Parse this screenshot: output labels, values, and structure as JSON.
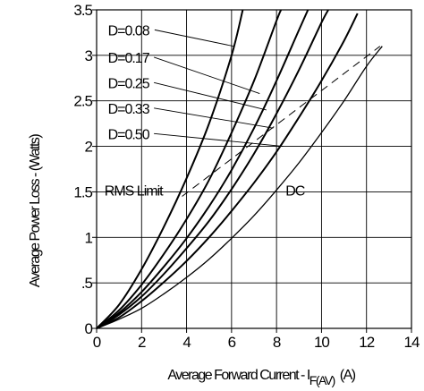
{
  "chart_data": {
    "type": "line",
    "xlabel": "Average Forward Current - I",
    "xlabel_sub": "F(AV)",
    "xlabel_unit": "(A)",
    "ylabel": "Average Power Loss - (Watts)",
    "xlim": [
      0,
      14
    ],
    "ylim": [
      0,
      3.5
    ],
    "x_ticks": [
      {
        "value": 0,
        "label": "0"
      },
      {
        "value": 2,
        "label": "2"
      },
      {
        "value": 4,
        "label": "4"
      },
      {
        "value": 6,
        "label": "6"
      },
      {
        "value": 8,
        "label": "8"
      },
      {
        "value": 10,
        "label": "10"
      },
      {
        "value": 12,
        "label": "12"
      },
      {
        "value": 14,
        "label": "14"
      }
    ],
    "y_ticks": [
      {
        "value": 0,
        "label": "0"
      },
      {
        "value": 0.5,
        "label": ".5"
      },
      {
        "value": 1,
        "label": "1"
      },
      {
        "value": 1.5,
        "label": "1.5"
      },
      {
        "value": 2,
        "label": "2"
      },
      {
        "value": 2.5,
        "label": "2.5"
      },
      {
        "value": 3,
        "label": "3"
      },
      {
        "value": 3.5,
        "label": "3.5"
      }
    ],
    "grid": true,
    "series": [
      {
        "name": "D=0.08",
        "style": "solid-thick",
        "x": [
          0,
          1,
          2,
          3,
          4,
          5,
          6,
          6.5
        ],
        "y": [
          0,
          0.26,
          0.65,
          1.12,
          1.65,
          2.25,
          3.0,
          3.5
        ],
        "label_at": {
          "x": 0.5,
          "y": 3.28
        }
      },
      {
        "name": "D=0.17",
        "style": "solid-thick",
        "x": [
          0,
          1,
          2,
          3,
          4,
          5,
          6,
          7,
          8,
          8.2
        ],
        "y": [
          0,
          0.2,
          0.48,
          0.82,
          1.2,
          1.63,
          2.15,
          2.72,
          3.38,
          3.5
        ],
        "label_at": {
          "x": 0.5,
          "y": 2.98
        }
      },
      {
        "name": "D=0.25",
        "style": "solid-thick",
        "x": [
          0,
          1,
          2,
          3,
          4,
          5,
          6,
          7,
          8,
          9,
          9.4
        ],
        "y": [
          0,
          0.17,
          0.4,
          0.68,
          0.99,
          1.34,
          1.74,
          2.2,
          2.72,
          3.28,
          3.5
        ],
        "label_at": {
          "x": 0.5,
          "y": 2.7
        }
      },
      {
        "name": "D=0.33",
        "style": "solid-thick",
        "x": [
          0,
          1,
          2,
          3,
          4,
          5,
          6,
          7,
          8,
          9,
          10,
          10.3
        ],
        "y": [
          0,
          0.15,
          0.35,
          0.6,
          0.88,
          1.18,
          1.53,
          1.92,
          2.36,
          2.84,
          3.36,
          3.5
        ],
        "label_at": {
          "x": 0.5,
          "y": 2.42
        }
      },
      {
        "name": "D=0.50",
        "style": "solid-thick",
        "x": [
          0,
          1,
          2,
          3,
          4,
          5,
          6,
          7,
          8,
          9,
          10,
          11,
          11.6
        ],
        "y": [
          0,
          0.12,
          0.3,
          0.51,
          0.74,
          1.0,
          1.29,
          1.6,
          1.94,
          2.32,
          2.72,
          3.16,
          3.46
        ],
        "label_at": {
          "x": 0.5,
          "y": 2.14
        }
      },
      {
        "name": "DC",
        "style": "solid-thin",
        "x": [
          0,
          1,
          2,
          3,
          4,
          5,
          6,
          7,
          8,
          9,
          10,
          11,
          12,
          12.7
        ],
        "y": [
          0,
          0.1,
          0.22,
          0.38,
          0.56,
          0.76,
          0.99,
          1.24,
          1.52,
          1.82,
          2.15,
          2.5,
          2.88,
          3.1
        ],
        "label_at": {
          "x": 8.4,
          "y": 1.52
        }
      },
      {
        "name": "RMS Limit",
        "style": "dashed",
        "x": [
          3.8,
          12.6
        ],
        "y": [
          1.45,
          3.1
        ],
        "label_at": {
          "x": 0.35,
          "y": 1.52
        }
      }
    ],
    "leaders": [
      {
        "series": "D=0.08",
        "from": [
          2.58,
          3.28
        ],
        "to": [
          6.1,
          3.1
        ]
      },
      {
        "series": "D=0.17",
        "from": [
          2.55,
          2.98
        ],
        "to": [
          7.25,
          2.58
        ]
      },
      {
        "series": "D=0.25",
        "from": [
          2.55,
          2.7
        ],
        "to": [
          7.55,
          2.4
        ]
      },
      {
        "series": "D=0.33",
        "from": [
          2.55,
          2.42
        ],
        "to": [
          7.85,
          2.2
        ]
      },
      {
        "series": "D=0.50",
        "from": [
          2.55,
          2.14
        ],
        "to": [
          8.3,
          2.0
        ]
      }
    ],
    "colors": {
      "line": "#000000",
      "grid": "#000000",
      "background": "#ffffff"
    }
  }
}
